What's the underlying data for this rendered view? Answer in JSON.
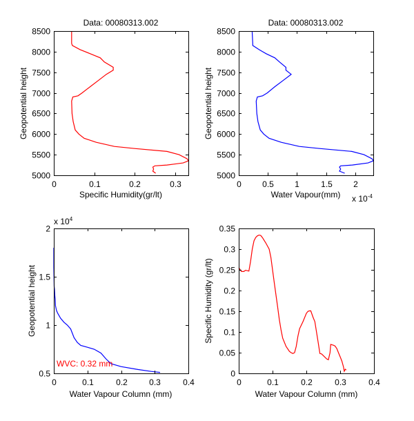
{
  "figure": {
    "background": "#ffffff"
  },
  "chart_data": [
    {
      "id": "top-left",
      "type": "line",
      "title": "Data: 00080313.002",
      "xlabel": "Specific Humidity(gr/lt)",
      "ylabel": "Geopotential height",
      "xlim": [
        0,
        0.333
      ],
      "ylim": [
        5000,
        8500
      ],
      "xticks": [
        0,
        0.1,
        0.2,
        0.3
      ],
      "xtick_labels": [
        "0",
        "0.1",
        "0.2",
        "0.3"
      ],
      "yticks": [
        5000,
        5500,
        6000,
        6500,
        7000,
        7500,
        8000,
        8500
      ],
      "ytick_labels": [
        "5000",
        "5500",
        "6000",
        "6500",
        "7000",
        "7500",
        "8000",
        "8500"
      ],
      "x_exponent_label": "",
      "y_exponent_label": "",
      "grid": false,
      "series": [
        {
          "name": "specific-humidity",
          "color": "#ff0000",
          "x": [
            0.252,
            0.245,
            0.247,
            0.245,
            0.25,
            0.28,
            0.32,
            0.333,
            0.33,
            0.31,
            0.28,
            0.2,
            0.15,
            0.105,
            0.075,
            0.062,
            0.053,
            0.048,
            0.045,
            0.044,
            0.047,
            0.06,
            0.07,
            0.09,
            0.11,
            0.13,
            0.147,
            0.147,
            0.125,
            0.115,
            0.09,
            0.065,
            0.046,
            0.044,
            0.044
          ],
          "y": [
            5050,
            5100,
            5150,
            5200,
            5230,
            5250,
            5300,
            5350,
            5400,
            5500,
            5580,
            5650,
            5700,
            5800,
            5900,
            6000,
            6100,
            6300,
            6500,
            6800,
            6900,
            6930,
            7000,
            7150,
            7300,
            7450,
            7550,
            7620,
            7750,
            7850,
            7950,
            8050,
            8150,
            8200,
            8500
          ]
        }
      ]
    },
    {
      "id": "top-right",
      "type": "line",
      "title": "Data: 00080313.002",
      "xlabel": "Water Vapour(mm)",
      "ylabel": "Geopotential height",
      "xlim": [
        0,
        2.31
      ],
      "ylim": [
        5000,
        8500
      ],
      "xticks": [
        0,
        0.5,
        1,
        1.5,
        2
      ],
      "xtick_labels": [
        "0",
        "0.5",
        "1",
        "1.5",
        "2"
      ],
      "yticks": [
        5000,
        5500,
        6000,
        6500,
        7000,
        7500,
        8000,
        8500
      ],
      "ytick_labels": [
        "5000",
        "5500",
        "6000",
        "6500",
        "7000",
        "7500",
        "8000",
        "8500"
      ],
      "x_exponent_label": "x 10",
      "x_exponent_power": "-4",
      "y_exponent_label": "",
      "grid": false,
      "series": [
        {
          "name": "water-vapour",
          "color": "#0000ff",
          "x": [
            1.82,
            1.73,
            1.75,
            1.73,
            1.75,
            1.95,
            2.22,
            2.31,
            2.29,
            2.15,
            1.94,
            1.39,
            1.04,
            0.73,
            0.52,
            0.43,
            0.37,
            0.33,
            0.31,
            0.3,
            0.32,
            0.41,
            0.49,
            0.62,
            0.76,
            0.9,
            0.81,
            0.81,
            0.7,
            0.62,
            0.47,
            0.35,
            0.24,
            0.24,
            0.23
          ],
          "y": [
            5050,
            5100,
            5150,
            5200,
            5230,
            5250,
            5300,
            5350,
            5400,
            5500,
            5580,
            5650,
            5700,
            5800,
            5900,
            6000,
            6100,
            6300,
            6500,
            6800,
            6900,
            6930,
            7000,
            7150,
            7300,
            7450,
            7550,
            7620,
            7750,
            7850,
            7950,
            8050,
            8150,
            8200,
            8500
          ]
        }
      ]
    },
    {
      "id": "bottom-left",
      "type": "line",
      "title": "",
      "xlabel": "Water Vapour Column (mm)",
      "ylabel": "Geopotential height",
      "xlim": [
        0,
        0.4
      ],
      "ylim": [
        0.5,
        2
      ],
      "xticks": [
        0,
        0.1,
        0.2,
        0.3,
        0.4
      ],
      "xtick_labels": [
        "0",
        "0.1",
        "0.2",
        "0.3",
        "0.4"
      ],
      "yticks": [
        0.5,
        1,
        1.5,
        2
      ],
      "ytick_labels": [
        "0.5",
        "1",
        "1.5",
        "2"
      ],
      "y_exponent_label": "x 10",
      "y_exponent_power": "4",
      "x_exponent_label": "",
      "grid": false,
      "annotation": {
        "text": "WVC: 0.32 mm",
        "color": "#ff0000",
        "x": 0.005,
        "y": 0.57
      },
      "series": [
        {
          "name": "water-vapour-column",
          "color": "#0000ff",
          "x": [
            0.316,
            0.29,
            0.25,
            0.2,
            0.17,
            0.155,
            0.14,
            0.12,
            0.1,
            0.08,
            0.07,
            0.06,
            0.05,
            0.04,
            0.03,
            0.02,
            0.012,
            0.008,
            0.005,
            0.004,
            0.003,
            0.002,
            0.001,
            0.0,
            0.0,
            0.0
          ],
          "y": [
            0.51,
            0.52,
            0.54,
            0.57,
            0.6,
            0.65,
            0.71,
            0.75,
            0.77,
            0.79,
            0.82,
            0.87,
            0.96,
            1.0,
            1.03,
            1.07,
            1.12,
            1.15,
            1.2,
            1.27,
            1.3,
            1.37,
            1.4,
            1.6,
            1.65,
            1.8
          ]
        }
      ]
    },
    {
      "id": "bottom-right",
      "type": "line",
      "title": "",
      "xlabel": "Water Vapour Column (mm)",
      "ylabel": "Specific Humidity (gr/lt)",
      "xlim": [
        0,
        0.4
      ],
      "ylim": [
        0,
        0.35
      ],
      "xticks": [
        0,
        0.1,
        0.2,
        0.3,
        0.4
      ],
      "xtick_labels": [
        "0",
        "0.1",
        "0.2",
        "0.3",
        "0.4"
      ],
      "yticks": [
        0,
        0.05,
        0.1,
        0.15,
        0.2,
        0.25,
        0.3,
        0.35
      ],
      "ytick_labels": [
        "0",
        "0.05",
        "0.1",
        "0.15",
        "0.2",
        "0.25",
        "0.3",
        "0.35"
      ],
      "x_exponent_label": "",
      "y_exponent_label": "",
      "grid": false,
      "series": [
        {
          "name": "sh-vs-wvc",
          "color": "#ff0000",
          "x": [
            0.0,
            0.003,
            0.008,
            0.015,
            0.02,
            0.025,
            0.03,
            0.035,
            0.04,
            0.045,
            0.05,
            0.055,
            0.06,
            0.065,
            0.07,
            0.08,
            0.09,
            0.095,
            0.1,
            0.105,
            0.11,
            0.115,
            0.12,
            0.125,
            0.13,
            0.14,
            0.15,
            0.155,
            0.16,
            0.165,
            0.17,
            0.175,
            0.18,
            0.19,
            0.2,
            0.205,
            0.21,
            0.213,
            0.22,
            0.225,
            0.23,
            0.235,
            0.24,
            0.245,
            0.25,
            0.26,
            0.265,
            0.27,
            0.272,
            0.28,
            0.285,
            0.29,
            0.295,
            0.3,
            0.305,
            0.31,
            0.312,
            0.315,
            0.318
          ],
          "y": [
            0.255,
            0.252,
            0.246,
            0.246,
            0.249,
            0.248,
            0.247,
            0.27,
            0.3,
            0.32,
            0.328,
            0.332,
            0.334,
            0.333,
            0.328,
            0.315,
            0.3,
            0.28,
            0.25,
            0.22,
            0.19,
            0.16,
            0.13,
            0.105,
            0.085,
            0.065,
            0.053,
            0.05,
            0.048,
            0.05,
            0.065,
            0.09,
            0.108,
            0.125,
            0.145,
            0.15,
            0.151,
            0.151,
            0.135,
            0.125,
            0.1,
            0.075,
            0.048,
            0.047,
            0.043,
            0.035,
            0.033,
            0.05,
            0.07,
            0.068,
            0.066,
            0.06,
            0.05,
            0.04,
            0.03,
            0.015,
            0.005,
            0.01,
            0.008
          ]
        }
      ]
    }
  ]
}
